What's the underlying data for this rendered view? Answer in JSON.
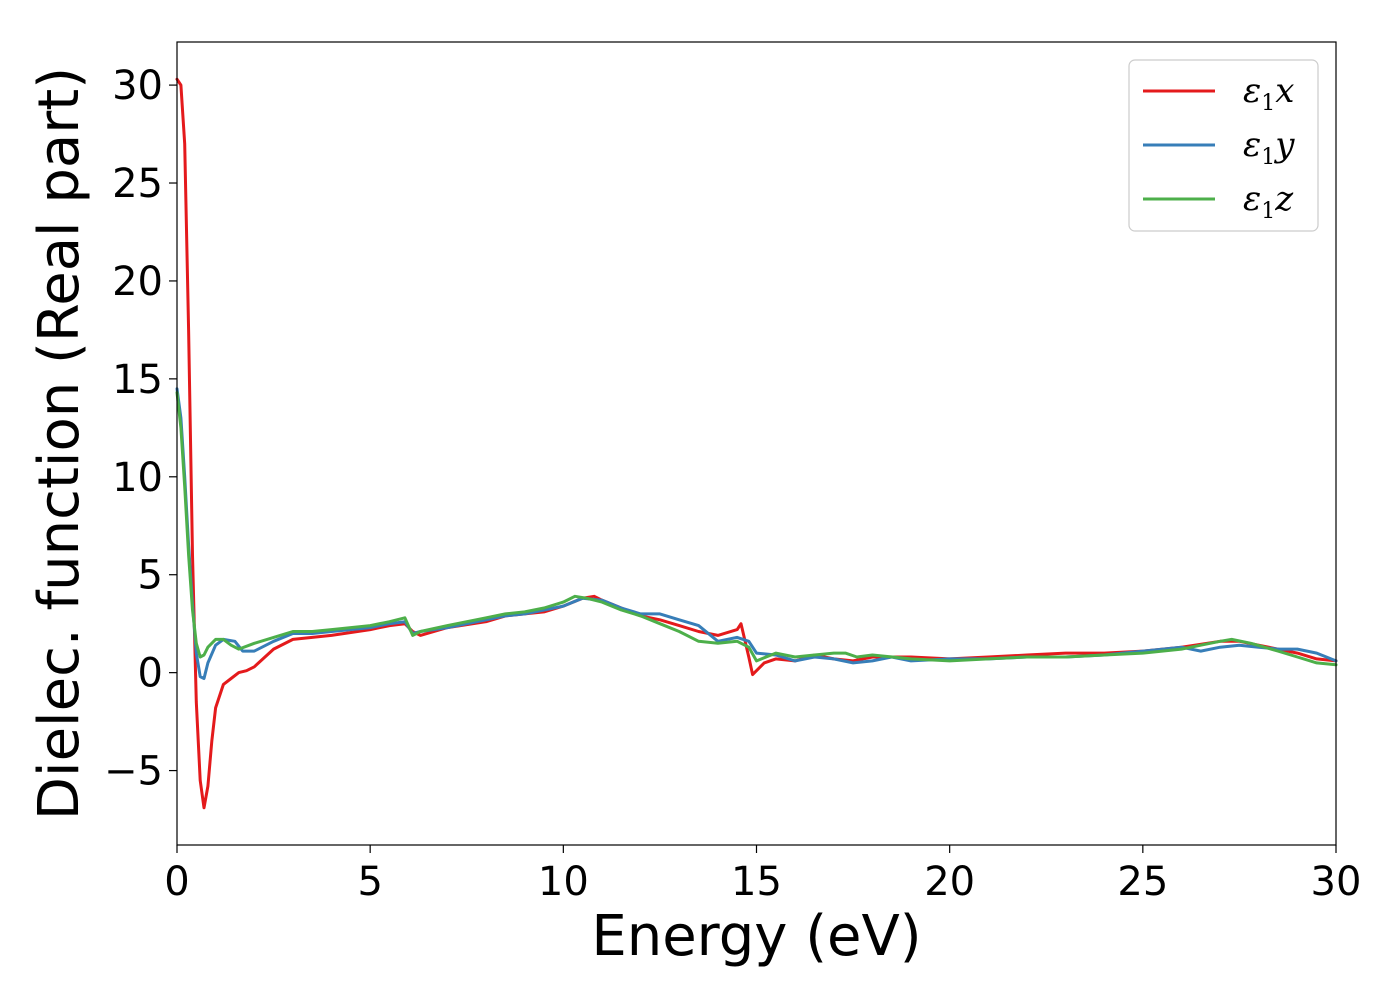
{
  "chart_data": {
    "type": "line",
    "xlabel": "Energy (eV)",
    "ylabel": "Dielec. function (Real part)",
    "xlim": [
      0,
      30
    ],
    "ylim": [
      -8.8,
      32.2
    ],
    "xticks": [
      0,
      5,
      10,
      15,
      20,
      25,
      30
    ],
    "xtick_labels": [
      "0",
      "5",
      "10",
      "15",
      "20",
      "25",
      "30"
    ],
    "yticks": [
      -5,
      0,
      5,
      10,
      15,
      20,
      25,
      30
    ],
    "ytick_labels": [
      "−5",
      "0",
      "5",
      "10",
      "15",
      "20",
      "25",
      "30"
    ],
    "grid": false,
    "legend_position": "top-right",
    "series": [
      {
        "name": "ε1x",
        "legend_base": "ε",
        "legend_sub": "1",
        "legend_suffix": "x",
        "color": "#e41a1c",
        "x": [
          0,
          0.1,
          0.2,
          0.3,
          0.4,
          0.5,
          0.6,
          0.7,
          0.8,
          0.9,
          1.0,
          1.2,
          1.4,
          1.6,
          1.8,
          2.0,
          2.5,
          3.0,
          3.5,
          4.0,
          5.0,
          5.5,
          5.9,
          6.1,
          6.3,
          7.0,
          8.0,
          8.5,
          9.0,
          9.5,
          10.0,
          10.5,
          10.8,
          11.0,
          11.5,
          12.0,
          12.5,
          13.0,
          13.5,
          14.0,
          14.5,
          14.6,
          14.8,
          14.9,
          15.2,
          15.5,
          16.0,
          16.5,
          17.0,
          17.5,
          18.0,
          19.0,
          20.0,
          21.0,
          22.0,
          23.0,
          24.0,
          25.0,
          26.0,
          27.0,
          27.5,
          28.0,
          29.0,
          29.5,
          30.0
        ],
        "y": [
          30.3,
          30.0,
          27.0,
          17.5,
          6.0,
          -1.5,
          -5.5,
          -6.9,
          -5.8,
          -3.5,
          -1.8,
          -0.6,
          -0.3,
          0.0,
          0.1,
          0.3,
          1.2,
          1.7,
          1.8,
          1.9,
          2.2,
          2.4,
          2.5,
          2.1,
          1.9,
          2.3,
          2.6,
          2.9,
          3.0,
          3.1,
          3.4,
          3.8,
          3.9,
          3.7,
          3.3,
          2.9,
          2.7,
          2.4,
          2.1,
          1.9,
          2.2,
          2.5,
          0.8,
          -0.1,
          0.5,
          0.7,
          0.6,
          0.9,
          0.7,
          0.6,
          0.8,
          0.8,
          0.7,
          0.8,
          0.9,
          1.0,
          1.0,
          1.1,
          1.3,
          1.6,
          1.6,
          1.4,
          1.0,
          0.7,
          0.6
        ]
      },
      {
        "name": "ε1y",
        "legend_base": "ε",
        "legend_sub": "1",
        "legend_suffix": "y",
        "color": "#377eb8",
        "x": [
          0,
          0.1,
          0.2,
          0.3,
          0.4,
          0.5,
          0.6,
          0.7,
          0.8,
          1.0,
          1.2,
          1.5,
          1.7,
          2.0,
          2.5,
          3.0,
          3.5,
          4.0,
          5.0,
          5.5,
          5.9,
          6.1,
          6.3,
          7.0,
          8.0,
          8.5,
          9.0,
          9.5,
          10.0,
          10.5,
          11.0,
          11.5,
          12.0,
          12.5,
          13.0,
          13.5,
          14.0,
          14.5,
          14.8,
          15.0,
          15.5,
          16.0,
          16.5,
          17.0,
          17.5,
          18.0,
          18.5,
          19.0,
          20.0,
          21.0,
          22.0,
          23.0,
          24.0,
          25.0,
          26.0,
          26.5,
          27.0,
          27.5,
          28.0,
          28.5,
          29.0,
          29.5,
          30.0
        ],
        "y": [
          14.5,
          13.0,
          10.0,
          6.5,
          3.5,
          1.0,
          -0.2,
          -0.3,
          0.5,
          1.4,
          1.7,
          1.6,
          1.1,
          1.1,
          1.6,
          2.0,
          2.0,
          2.1,
          2.3,
          2.5,
          2.6,
          2.0,
          2.1,
          2.3,
          2.7,
          2.9,
          3.0,
          3.2,
          3.4,
          3.8,
          3.7,
          3.3,
          3.0,
          3.0,
          2.7,
          2.4,
          1.6,
          1.8,
          1.6,
          1.0,
          0.9,
          0.6,
          0.8,
          0.7,
          0.5,
          0.6,
          0.8,
          0.6,
          0.7,
          0.7,
          0.8,
          0.8,
          0.9,
          1.1,
          1.3,
          1.1,
          1.3,
          1.4,
          1.3,
          1.2,
          1.2,
          1.0,
          0.6
        ]
      },
      {
        "name": "ε1z",
        "legend_base": "ε",
        "legend_sub": "1",
        "legend_suffix": "z",
        "color": "#4daf4a",
        "x": [
          0,
          0.1,
          0.2,
          0.3,
          0.4,
          0.5,
          0.6,
          0.7,
          0.8,
          1.0,
          1.2,
          1.4,
          1.6,
          2.0,
          2.5,
          3.0,
          3.5,
          4.0,
          5.0,
          5.5,
          5.9,
          6.1,
          6.3,
          7.0,
          8.0,
          8.5,
          9.0,
          9.5,
          10.0,
          10.3,
          10.6,
          11.0,
          11.5,
          12.0,
          12.5,
          13.0,
          13.5,
          14.0,
          14.5,
          14.8,
          15.0,
          15.5,
          16.0,
          16.5,
          17.0,
          17.3,
          17.6,
          18.0,
          19.0,
          20.0,
          21.0,
          22.0,
          23.0,
          24.0,
          25.0,
          26.0,
          26.5,
          27.0,
          27.3,
          27.8,
          28.5,
          29.0,
          29.5,
          30.0
        ],
        "y": [
          14.3,
          12.5,
          9.5,
          6.0,
          3.2,
          1.5,
          0.8,
          0.9,
          1.3,
          1.7,
          1.7,
          1.4,
          1.2,
          1.5,
          1.8,
          2.1,
          2.1,
          2.2,
          2.4,
          2.6,
          2.8,
          1.9,
          2.1,
          2.4,
          2.8,
          3.0,
          3.1,
          3.3,
          3.6,
          3.9,
          3.8,
          3.6,
          3.2,
          2.9,
          2.5,
          2.1,
          1.6,
          1.5,
          1.6,
          1.3,
          0.6,
          1.0,
          0.8,
          0.9,
          1.0,
          1.0,
          0.8,
          0.9,
          0.7,
          0.6,
          0.7,
          0.8,
          0.8,
          0.9,
          1.0,
          1.2,
          1.4,
          1.6,
          1.7,
          1.5,
          1.1,
          0.8,
          0.5,
          0.4
        ]
      }
    ]
  }
}
